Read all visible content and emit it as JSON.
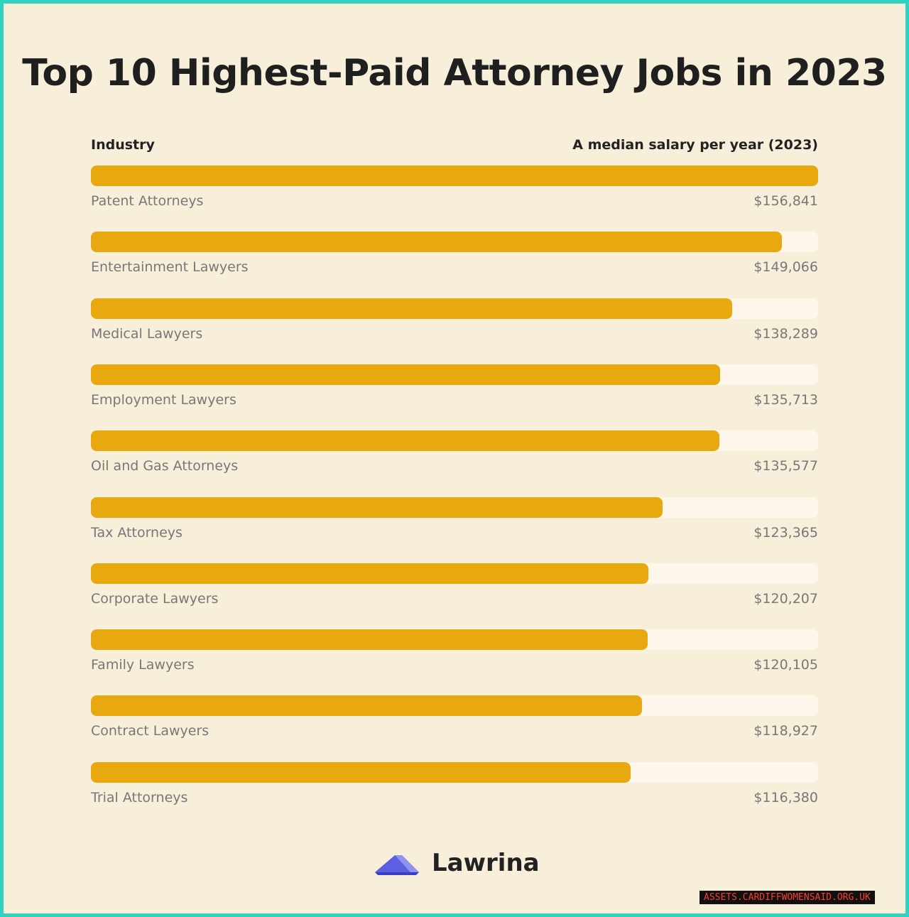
{
  "title": "Top 10 Highest-Paid Attorney Jobs in 2023",
  "colors": {
    "bar": "#e8a80f",
    "track": "#fdf6ea",
    "background": "#f8efdb",
    "border": "#2fd3c0"
  },
  "chart_data": {
    "type": "bar",
    "orientation": "horizontal",
    "title": "Top 10 Highest-Paid Attorney Jobs in 2023",
    "category_header": "Industry",
    "value_header": "A median salary per year (2023)",
    "categories": [
      "Patent Attorneys",
      "Entertainment Lawyers",
      "Medical Lawyers",
      "Employment Lawyers",
      "Oil and Gas Attorneys",
      "Tax Attorneys",
      "Corporate Lawyers",
      "Family Lawyers",
      "Contract Lawyers",
      "Trial Attorneys"
    ],
    "values": [
      156841,
      149066,
      138289,
      135713,
      135577,
      123365,
      120207,
      120105,
      118927,
      116380
    ],
    "value_labels": [
      "$156,841",
      "$149,066",
      "$138,289",
      "$135,713",
      "$135,577",
      "$123,365",
      "$120,207",
      "$120,105",
      "$118,927",
      "$116,380"
    ],
    "xlim": [
      0,
      156841
    ]
  },
  "logo": {
    "text": "Lawrina",
    "icon": "lawrina-logo-icon"
  },
  "watermark": "ASSETS.CARDIFFWOMENSAID.ORG.UK"
}
